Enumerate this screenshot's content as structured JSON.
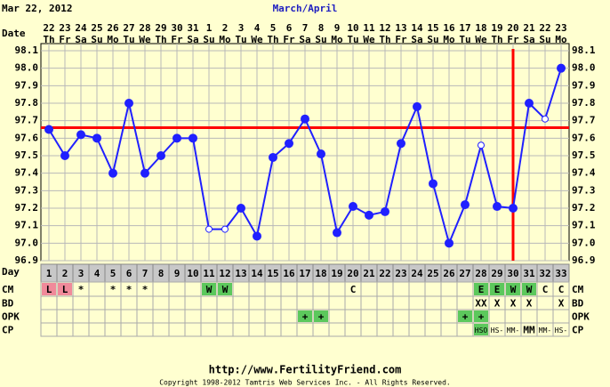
{
  "header": {
    "date": "Mar 22, 2012",
    "period": "March/April",
    "date_label": "Date",
    "day_label": "Day"
  },
  "chart_data": {
    "type": "line",
    "dates": [
      "22",
      "23",
      "24",
      "25",
      "26",
      "27",
      "28",
      "29",
      "30",
      "31",
      "1",
      "2",
      "3",
      "4",
      "5",
      "6",
      "7",
      "8",
      "9",
      "10",
      "11",
      "12",
      "13",
      "14",
      "15",
      "16",
      "17",
      "18",
      "19",
      "20",
      "21",
      "22",
      "23"
    ],
    "weekdays": [
      "Th",
      "Fr",
      "Sa",
      "Su",
      "Mo",
      "Tu",
      "We",
      "Th",
      "Fr",
      "Sa",
      "Su",
      "Mo",
      "Tu",
      "We",
      "Th",
      "Fr",
      "Sa",
      "Su",
      "Mo",
      "Tu",
      "We",
      "Th",
      "Fr",
      "Sa",
      "Su",
      "Mo",
      "Tu",
      "We",
      "Th",
      "Fr",
      "Sa",
      "Su",
      "Mo"
    ],
    "x": [
      1,
      2,
      3,
      4,
      5,
      6,
      7,
      8,
      9,
      10,
      11,
      12,
      13,
      14,
      15,
      16,
      17,
      18,
      19,
      20,
      21,
      22,
      23,
      24,
      25,
      26,
      27,
      28,
      29,
      30,
      31,
      32,
      33
    ],
    "values": [
      97.65,
      97.5,
      97.62,
      97.6,
      97.4,
      97.8,
      97.4,
      97.5,
      97.6,
      97.6,
      97.08,
      97.08,
      97.2,
      97.04,
      97.49,
      97.57,
      97.71,
      97.51,
      97.06,
      97.21,
      97.16,
      97.18,
      97.57,
      97.78,
      97.34,
      97.0,
      97.22,
      97.56,
      97.21,
      97.2,
      97.8,
      97.71,
      98.0
    ],
    "color": "#2020ff",
    "hollow_days": [
      11,
      12,
      28,
      32
    ],
    "coverline": 97.66,
    "ovulation_day": 30,
    "marker_line_color": "#ff0000",
    "xlim": [
      0.5,
      33.5
    ],
    "ylim": [
      96.9,
      98.1
    ],
    "yticks": [
      96.9,
      {
        "value": 97.0,
        "label": "97.0"
      },
      97.1,
      97.2,
      97.3,
      97.4,
      97.5,
      97.6,
      97.7,
      97.8,
      97.9,
      {
        "value": 98.0,
        "label": "98.0"
      },
      98.1
    ],
    "grid": true
  },
  "rows": [
    {
      "label": "CM",
      "cells": [
        {
          "day": 1,
          "text": "L",
          "color": "#f08a9a"
        },
        {
          "day": 2,
          "text": "L",
          "color": "#f08a9a"
        },
        {
          "day": 3,
          "text": "*"
        },
        {
          "day": 5,
          "text": "*"
        },
        {
          "day": 6,
          "text": "*"
        },
        {
          "day": 7,
          "text": "*"
        },
        {
          "day": 11,
          "text": "W",
          "color": "#5cc85c"
        },
        {
          "day": 12,
          "text": "W",
          "color": "#5cc85c"
        },
        {
          "day": 20,
          "text": "C"
        },
        {
          "day": 28,
          "text": "E",
          "color": "#5cc85c"
        },
        {
          "day": 29,
          "text": "E",
          "color": "#5cc85c"
        },
        {
          "day": 30,
          "text": "W",
          "color": "#5cc85c"
        },
        {
          "day": 31,
          "text": "W",
          "color": "#5cc85c"
        },
        {
          "day": 32,
          "text": "C"
        },
        {
          "day": 33,
          "text": "C"
        }
      ]
    },
    {
      "label": "BD",
      "cells": [
        {
          "day": 28,
          "text": "XX"
        },
        {
          "day": 29,
          "text": "X"
        },
        {
          "day": 30,
          "text": "X"
        },
        {
          "day": 31,
          "text": "X"
        },
        {
          "day": 33,
          "text": "X"
        }
      ]
    },
    {
      "label": "OPK",
      "cells": [
        {
          "day": 17,
          "text": "+",
          "color": "#5cc85c"
        },
        {
          "day": 18,
          "text": "+",
          "color": "#5cc85c"
        },
        {
          "day": 27,
          "text": "+",
          "color": "#5cc85c"
        },
        {
          "day": 28,
          "text": "+",
          "color": "#5cc85c"
        }
      ]
    },
    {
      "label": "CP",
      "cells": [
        {
          "day": 28,
          "text": "HSO",
          "color": "#5cc85c"
        },
        {
          "day": 29,
          "text": "HS-"
        },
        {
          "day": 30,
          "text": "MM-"
        },
        {
          "day": 31,
          "text": "MM"
        },
        {
          "day": 32,
          "text": "MM-"
        },
        {
          "day": 33,
          "text": "HS-"
        }
      ]
    }
  ],
  "footer": {
    "url": "http://www.FertilityFriend.com",
    "copyright": "Copyright 1998-2012 Tamtris Web Services Inc. - All Rights Reserved."
  }
}
